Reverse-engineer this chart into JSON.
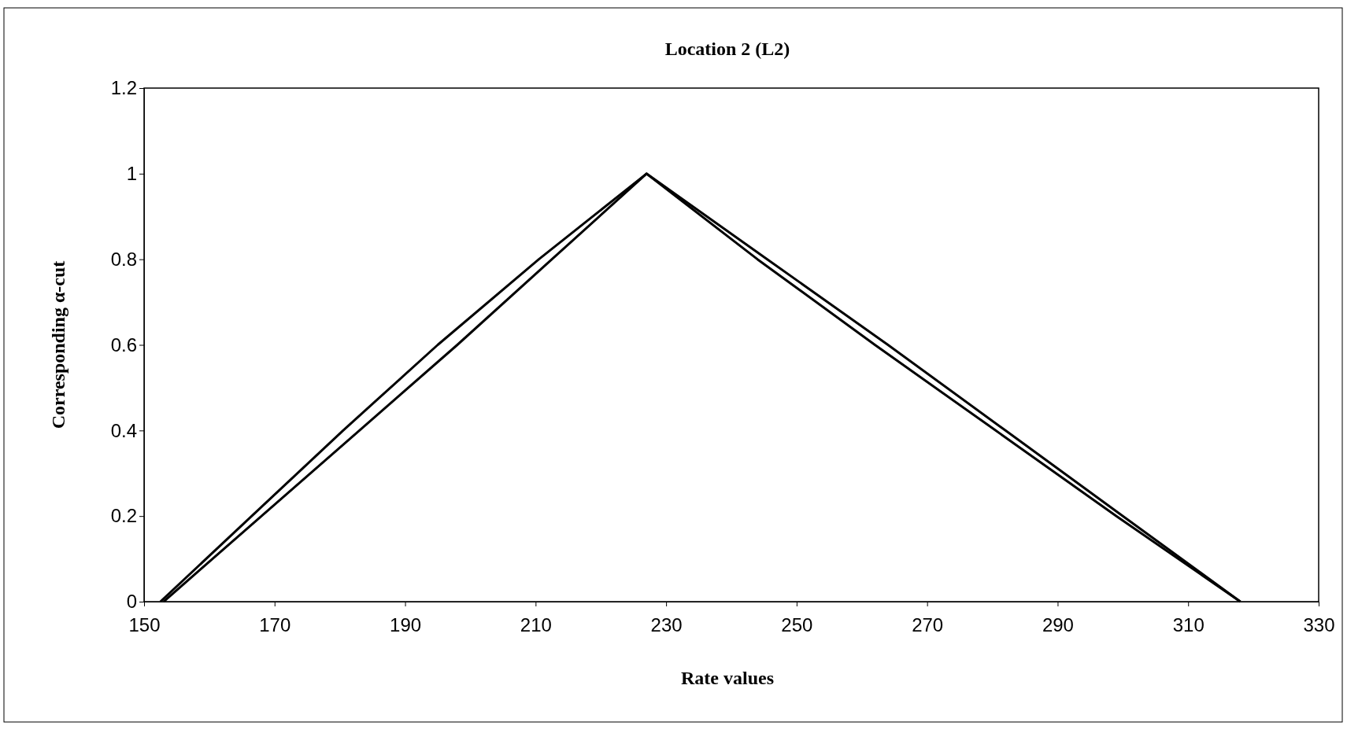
{
  "chart_data": {
    "type": "line",
    "title": "Location 2 (L2)",
    "xlabel": "Rate values",
    "ylabel": "Corresponding α-cut",
    "series": [
      {
        "color": "#000000",
        "x": [
          152.5,
          166.5,
          180.5,
          195,
          210.5,
          227,
          245.5,
          264,
          282,
          300,
          318
        ],
        "values": [
          0,
          0.2,
          0.4,
          0.6,
          0.8,
          1,
          0.8,
          0.6,
          0.4,
          0.2,
          0
        ]
      },
      {
        "color": "#000000",
        "x": [
          153,
          168,
          183,
          198,
          212.5,
          227,
          244,
          262,
          280.5,
          299,
          318
        ],
        "values": [
          0,
          0.2,
          0.4,
          0.6,
          0.8,
          1,
          0.8,
          0.6,
          0.4,
          0.2,
          0
        ]
      }
    ],
    "xlim": [
      150,
      330
    ],
    "xticks": [
      150,
      170,
      190,
      210,
      230,
      250,
      270,
      290,
      310,
      330
    ],
    "ylim": [
      0,
      1.2
    ],
    "yticks": [
      0,
      0.2,
      0.4,
      0.6,
      0.8,
      1,
      1.2
    ],
    "marker": "none",
    "line_style": "solid"
  }
}
